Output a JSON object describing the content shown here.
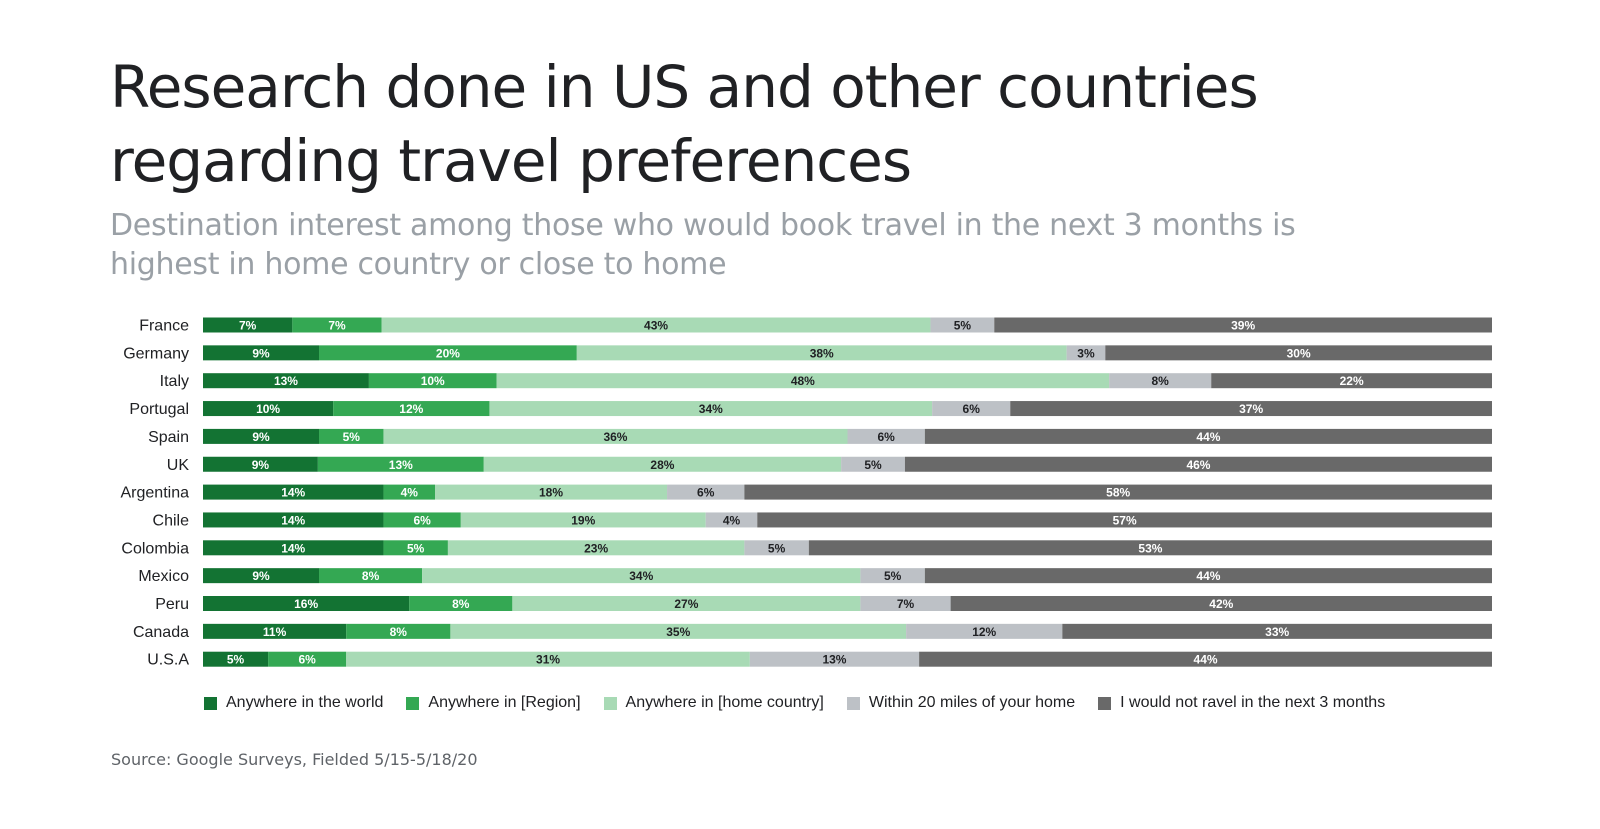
{
  "header": {
    "title": "Research done in US and other countries regarding travel preferences",
    "subtitle": "Destination interest among those who would book travel in the next 3 months is highest in home country or close to home"
  },
  "footer": {
    "source": "Source: Google Surveys, Fielded 5/15-5/18/20"
  },
  "chart_data": {
    "type": "bar",
    "orientation": "horizontal",
    "stacked": true,
    "normalized": true,
    "categories": [
      "France",
      "Germany",
      "Italy",
      "Portugal",
      "Spain",
      "UK",
      "Argentina",
      "Chile",
      "Colombia",
      "Mexico",
      "Peru",
      "Canada",
      "U.S.A"
    ],
    "value_suffix": "%",
    "series": [
      {
        "name": "Anywhere in the world",
        "color": "#137333",
        "label_color": "#ffffff",
        "values": [
          7,
          9,
          13,
          10,
          9,
          9,
          14,
          14,
          14,
          9,
          16,
          11,
          5
        ]
      },
      {
        "name": "Anywhere in [Region]",
        "color": "#34a853",
        "label_color": "#ffffff",
        "values": [
          7,
          20,
          10,
          12,
          5,
          13,
          4,
          6,
          5,
          8,
          8,
          8,
          6
        ]
      },
      {
        "name": "Anywhere in [home country]",
        "color": "#a8dab5",
        "label_color": "#202124",
        "values": [
          43,
          38,
          48,
          34,
          36,
          28,
          18,
          19,
          23,
          34,
          27,
          35,
          31
        ]
      },
      {
        "name": "Within 20 miles of your home",
        "color": "#bdc1c6",
        "label_color": "#202124",
        "values": [
          5,
          3,
          8,
          6,
          6,
          5,
          6,
          4,
          5,
          5,
          7,
          12,
          13
        ]
      },
      {
        "name": "I would not ravel in the next 3 months",
        "color": "#696969",
        "label_color": "#ffffff",
        "values": [
          39,
          30,
          22,
          37,
          44,
          46,
          58,
          57,
          53,
          44,
          42,
          33,
          44
        ]
      }
    ],
    "legend_position": "bottom",
    "grid": false
  }
}
